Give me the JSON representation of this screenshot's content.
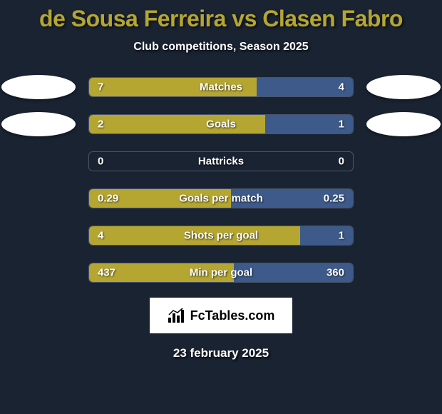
{
  "title": "de Sousa Ferreira vs Clasen Fabro",
  "subtitle": "Club competitions, Season 2025",
  "brand": "FcTables.com",
  "footer_date": "23 february 2025",
  "colors": {
    "left_fill": "#b5a632",
    "right_fill": "#3d5a8a",
    "background": "#1a2332",
    "border": "#4a5568",
    "title_color": "#b5a632",
    "badge_bg": "#ffffff"
  },
  "stats": [
    {
      "label": "Matches",
      "left_val": "7",
      "right_val": "4",
      "left_pct": 63.6,
      "right_pct": 36.4,
      "show_badges": true
    },
    {
      "label": "Goals",
      "left_val": "2",
      "right_val": "1",
      "left_pct": 66.7,
      "right_pct": 33.3,
      "show_badges": true
    },
    {
      "label": "Hattricks",
      "left_val": "0",
      "right_val": "0",
      "left_pct": 0,
      "right_pct": 0,
      "show_badges": false
    },
    {
      "label": "Goals per match",
      "left_val": "0.29",
      "right_val": "0.25",
      "left_pct": 53.7,
      "right_pct": 46.3,
      "show_badges": false
    },
    {
      "label": "Shots per goal",
      "left_val": "4",
      "right_val": "1",
      "left_pct": 80.0,
      "right_pct": 20.0,
      "show_badges": false
    },
    {
      "label": "Min per goal",
      "left_val": "437",
      "right_val": "360",
      "left_pct": 54.8,
      "right_pct": 45.2,
      "show_badges": false
    }
  ]
}
